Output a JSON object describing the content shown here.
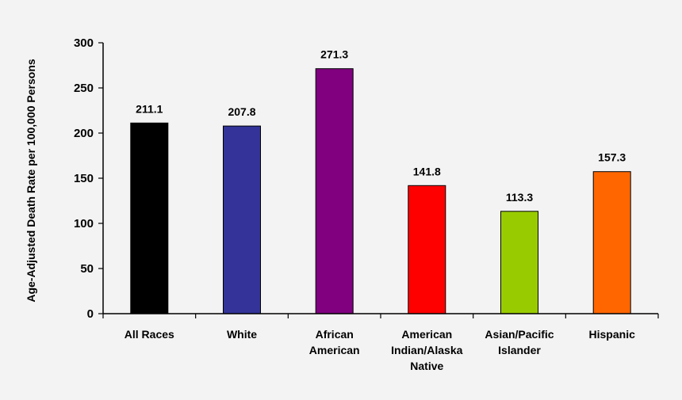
{
  "chart_data": {
    "type": "bar",
    "title": "",
    "xlabel": "",
    "ylabel": "Age-Adjusted Death Rate per 100,000 Persons",
    "ylim": [
      0,
      300
    ],
    "yticks": [
      0,
      50,
      100,
      150,
      200,
      250,
      300
    ],
    "grid": false,
    "legend": "none",
    "categories": [
      [
        "All Races"
      ],
      [
        "White"
      ],
      [
        "African",
        "American"
      ],
      [
        "American",
        "Indian/Alaska",
        "Native"
      ],
      [
        "Asian/Pacific",
        "Islander"
      ],
      [
        "Hispanic"
      ]
    ],
    "values": [
      211.1,
      207.8,
      271.3,
      141.8,
      113.3,
      157.3
    ],
    "value_labels": [
      "211.1",
      "207.8",
      "271.3",
      "141.8",
      "113.3",
      "157.3"
    ],
    "colors": [
      "#000000",
      "#333399",
      "#800080",
      "#ff0000",
      "#99cc00",
      "#ff6600"
    ]
  },
  "colors": {
    "background": "#f3f3f3",
    "axis": "#000000",
    "text": "#000000"
  }
}
